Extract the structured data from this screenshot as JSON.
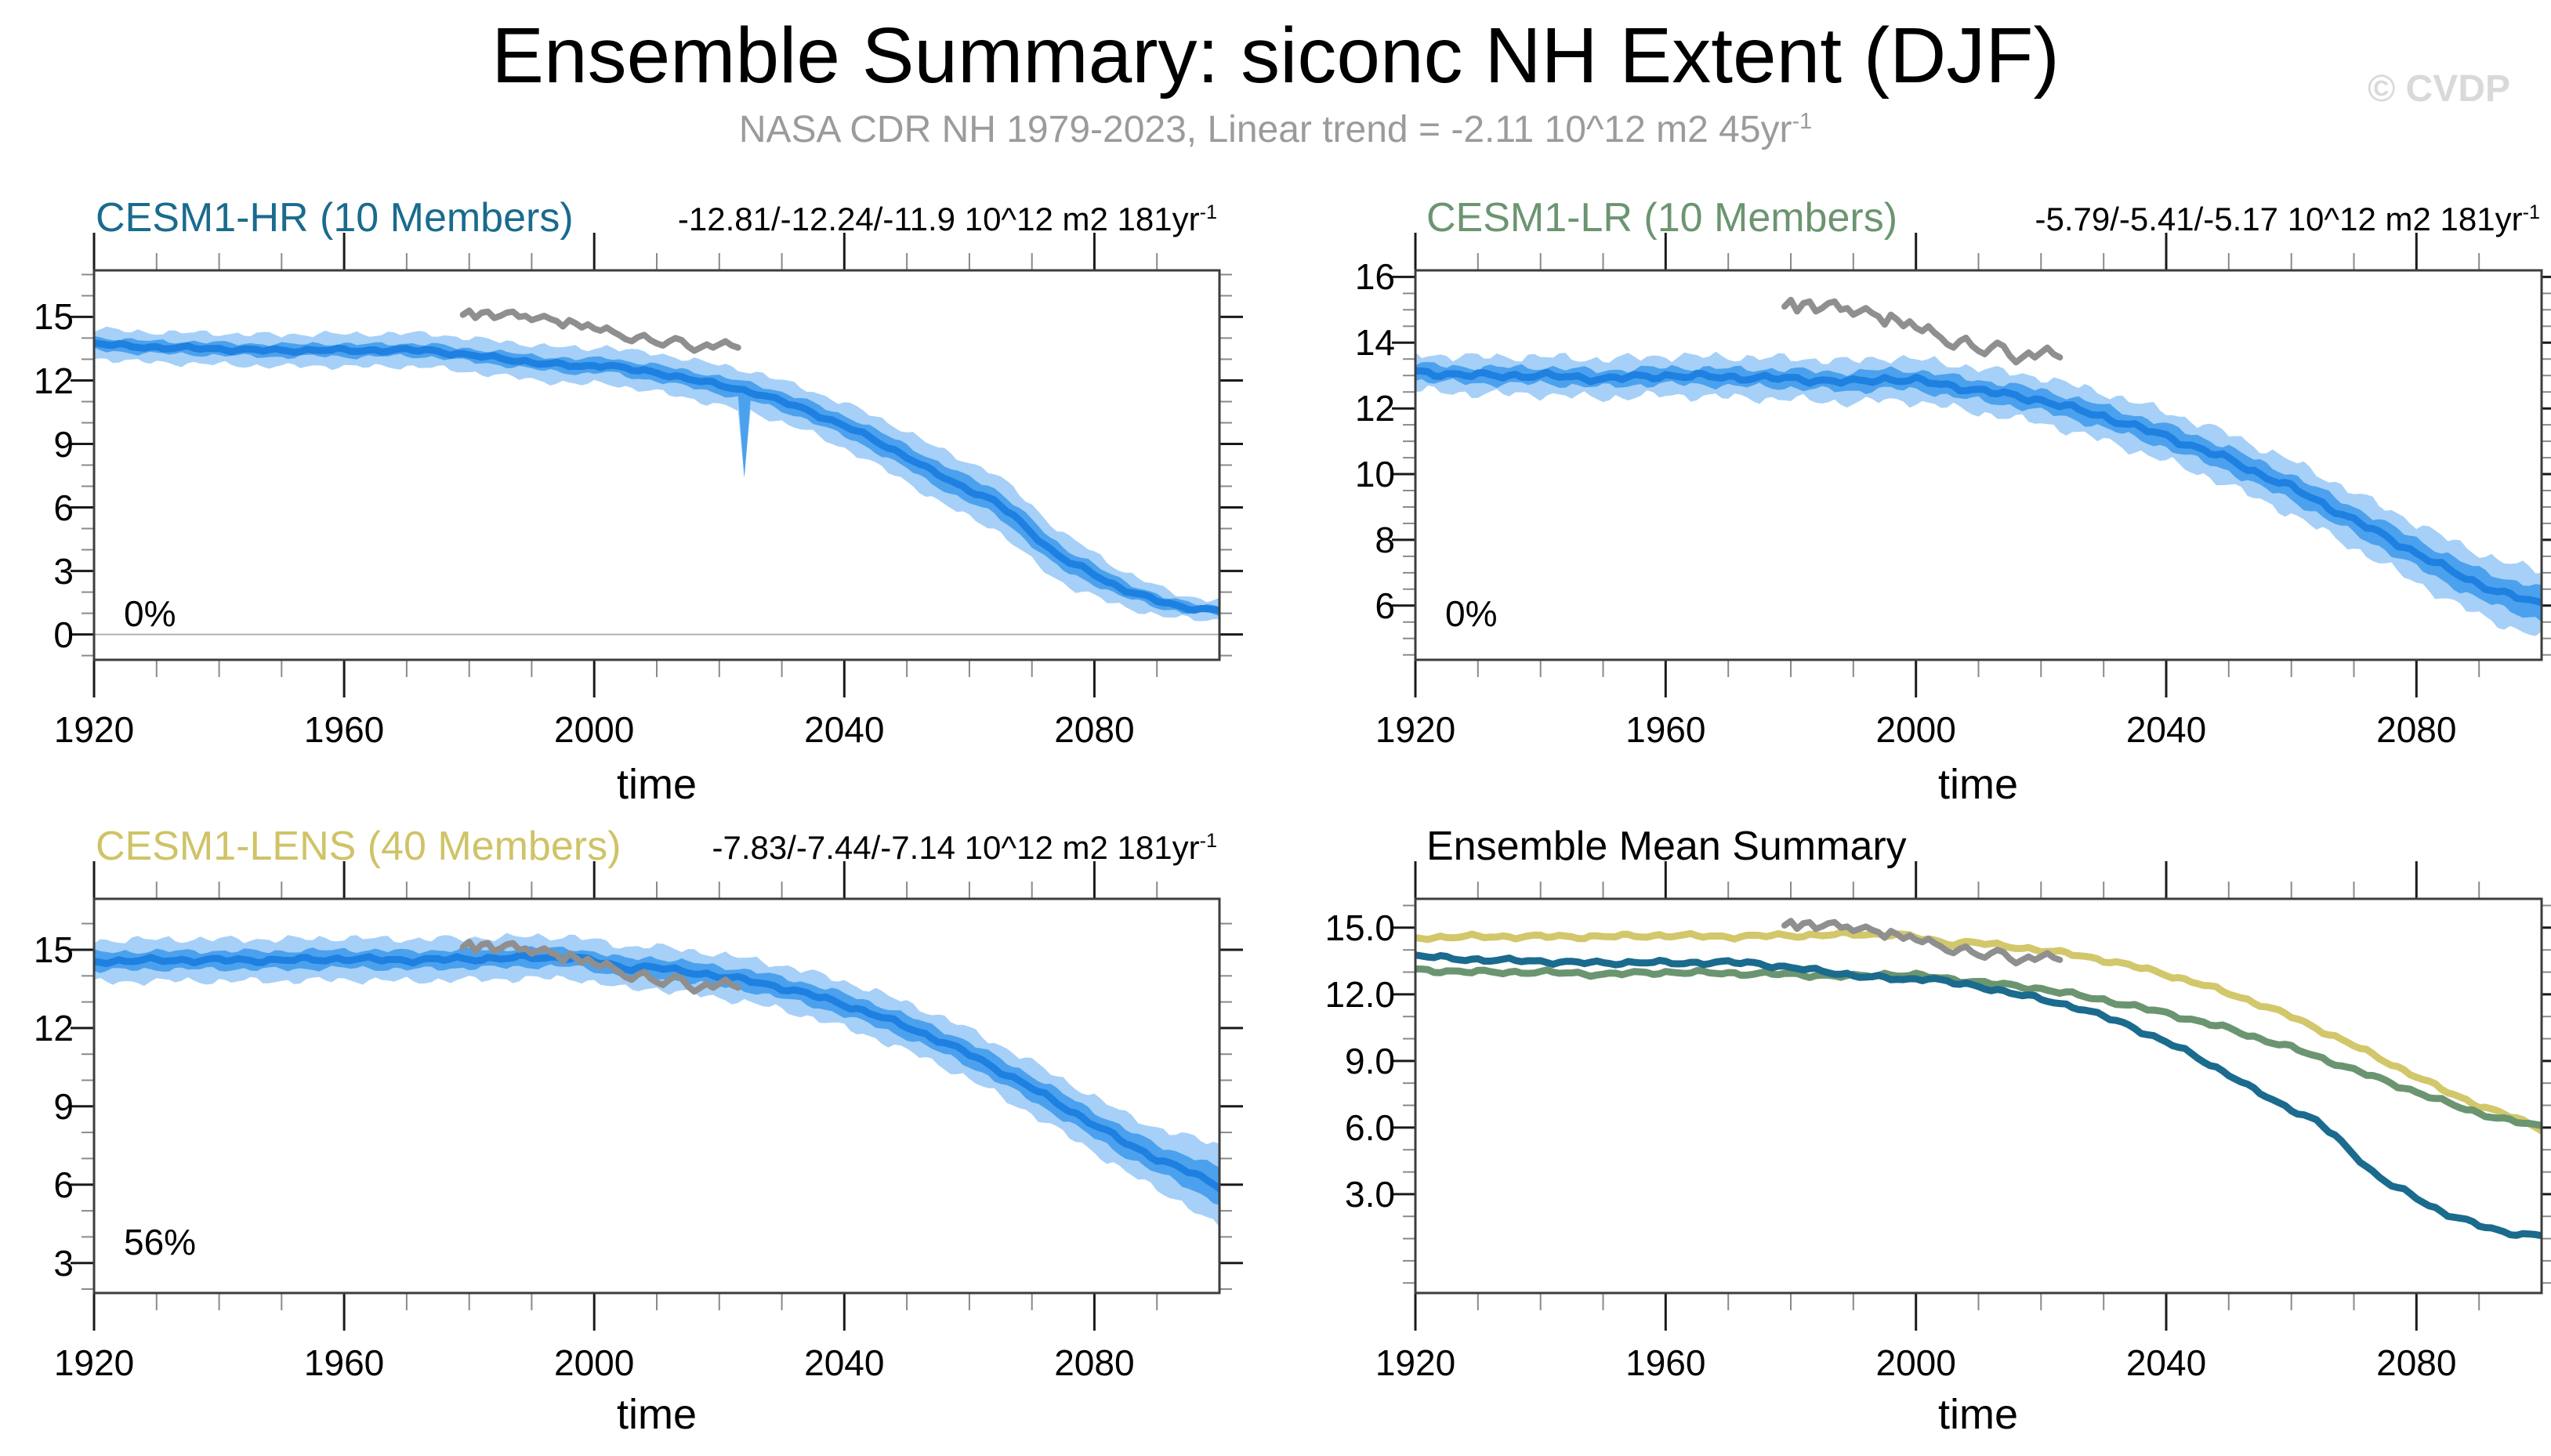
{
  "header": {
    "title": "Ensemble Summary: siconc NH Extent (DJF)",
    "subtitle_main": "NASA CDR NH 1979-2023, Linear trend = -2.11 10^12 m2 45yr",
    "subtitle_sup": "-1",
    "watermark": "© CVDP"
  },
  "chart_data": {
    "type": "line",
    "xlabel_all": "time",
    "panels": [
      {
        "id": "tl",
        "title": "CESM1-HR (10 Members)",
        "title_color": "#1a6b8d",
        "trend": "-12.81/-12.24/-11.9 10^12 m2 181yr",
        "trend_sup": "-1",
        "corner_label": "0%",
        "xlabel": "time",
        "x_range": [
          1920,
          2100
        ],
        "x_major_ticks": [
          1920,
          1960,
          2000,
          2040,
          2080
        ],
        "x_minor_step": 10,
        "y_range": [
          -1.2,
          17.2
        ],
        "y_major_ticks": [
          0,
          3,
          6,
          9,
          12,
          15
        ],
        "y_minor_step": 1,
        "y_tick_format": "int",
        "zero_line": 0,
        "band_of": "hr",
        "lines": [
          {
            "ref": "hr",
            "use": "mean"
          },
          {
            "ref": "obs",
            "use": "obs"
          }
        ]
      },
      {
        "id": "tr",
        "title": "CESM1-LR (10 Members)",
        "title_color": "#6b9570",
        "trend": "-5.79/-5.41/-5.17 10^12 m2 181yr",
        "trend_sup": "-1",
        "corner_label": "0%",
        "xlabel": "time",
        "x_range": [
          1920,
          2100
        ],
        "x_major_ticks": [
          1920,
          1960,
          2000,
          2040,
          2080
        ],
        "x_minor_step": 10,
        "y_range": [
          4.35,
          16.2
        ],
        "y_major_ticks": [
          6,
          8,
          10,
          12,
          14,
          16
        ],
        "y_minor_step": 0.5,
        "y_tick_format": "int",
        "zero_line": null,
        "band_of": "lr",
        "lines": [
          {
            "ref": "lr",
            "use": "mean"
          },
          {
            "ref": "obs",
            "use": "obs"
          }
        ]
      },
      {
        "id": "bl",
        "title": "CESM1-LENS (40 Members)",
        "title_color": "#cfc367",
        "trend": "-7.83/-7.44/-7.14 10^12 m2 181yr",
        "trend_sup": "-1",
        "corner_label": "56%",
        "xlabel": "time",
        "x_range": [
          1920,
          2100
        ],
        "x_major_ticks": [
          1920,
          1960,
          2000,
          2040,
          2080
        ],
        "x_minor_step": 10,
        "y_range": [
          1.85,
          16.95
        ],
        "y_major_ticks": [
          3,
          6,
          9,
          12,
          15
        ],
        "y_minor_step": 1,
        "y_tick_format": "int",
        "zero_line": null,
        "band_of": "lens",
        "lines": [
          {
            "ref": "lens",
            "use": "mean"
          },
          {
            "ref": "obs",
            "use": "obs"
          }
        ]
      },
      {
        "id": "br",
        "title": "Ensemble Mean Summary",
        "title_color": "#000000",
        "trend": null,
        "trend_sup": null,
        "corner_label": null,
        "xlabel": "time",
        "x_range": [
          1920,
          2100
        ],
        "x_major_ticks": [
          1920,
          1960,
          2000,
          2040,
          2080
        ],
        "x_minor_step": 10,
        "y_range": [
          -1.45,
          16.3
        ],
        "y_major_ticks": [
          3,
          6,
          9,
          12,
          15
        ],
        "y_minor_step": 1,
        "y_tick_format": "fixed1",
        "zero_line": null,
        "band_of": null,
        "lines": [
          {
            "ref": "lens",
            "use": "summary"
          },
          {
            "ref": "lr",
            "use": "summary"
          },
          {
            "ref": "hr",
            "use": "summary"
          },
          {
            "ref": "obs",
            "use": "obs"
          }
        ]
      }
    ],
    "series": {
      "obs": {
        "name": "NASA CDR NH observations 1979-2023",
        "color": "#8f8f8f",
        "points": [
          [
            1979,
            15.1
          ],
          [
            1980,
            15.3
          ],
          [
            1981,
            14.95
          ],
          [
            1982,
            15.2
          ],
          [
            1983,
            15.25
          ],
          [
            1984,
            14.95
          ],
          [
            1985,
            15.05
          ],
          [
            1986,
            15.2
          ],
          [
            1987,
            15.25
          ],
          [
            1988,
            15.0
          ],
          [
            1989,
            15.05
          ],
          [
            1990,
            14.85
          ],
          [
            1991,
            14.95
          ],
          [
            1992,
            15.05
          ],
          [
            1993,
            14.9
          ],
          [
            1994,
            14.8
          ],
          [
            1995,
            14.55
          ],
          [
            1996,
            14.85
          ],
          [
            1997,
            14.7
          ],
          [
            1998,
            14.5
          ],
          [
            1999,
            14.65
          ],
          [
            2000,
            14.45
          ],
          [
            2001,
            14.35
          ],
          [
            2002,
            14.5
          ],
          [
            2003,
            14.3
          ],
          [
            2004,
            14.15
          ],
          [
            2005,
            13.95
          ],
          [
            2006,
            13.85
          ],
          [
            2007,
            14.05
          ],
          [
            2008,
            14.15
          ],
          [
            2009,
            13.9
          ],
          [
            2010,
            13.75
          ],
          [
            2011,
            13.65
          ],
          [
            2012,
            13.85
          ],
          [
            2013,
            14.0
          ],
          [
            2014,
            13.9
          ],
          [
            2015,
            13.6
          ],
          [
            2016,
            13.4
          ],
          [
            2017,
            13.55
          ],
          [
            2018,
            13.7
          ],
          [
            2019,
            13.55
          ],
          [
            2020,
            13.7
          ],
          [
            2021,
            13.85
          ],
          [
            2022,
            13.65
          ],
          [
            2023,
            13.55
          ]
        ]
      },
      "hr": {
        "name": "CESM1-HR ensemble mean",
        "color_mean": "#1e80e0",
        "color_inner": "#4ba1ed",
        "color_outer": "#a6d0f7",
        "summary_color": "#1a6b8d",
        "mean": [
          [
            1920,
            13.75
          ],
          [
            1926,
            13.6
          ],
          [
            1932,
            13.55
          ],
          [
            1938,
            13.5
          ],
          [
            1944,
            13.45
          ],
          [
            1950,
            13.4
          ],
          [
            1956,
            13.45
          ],
          [
            1962,
            13.4
          ],
          [
            1968,
            13.45
          ],
          [
            1974,
            13.4
          ],
          [
            1980,
            13.2
          ],
          [
            1986,
            13.0
          ],
          [
            1992,
            12.8
          ],
          [
            1998,
            12.65
          ],
          [
            2002,
            12.75
          ],
          [
            2006,
            12.5
          ],
          [
            2010,
            12.35
          ],
          [
            2014,
            12.15
          ],
          [
            2018,
            11.9
          ],
          [
            2022,
            11.65
          ],
          [
            2026,
            11.4
          ],
          [
            2030,
            11.0
          ],
          [
            2034,
            10.6
          ],
          [
            2038,
            10.1
          ],
          [
            2042,
            9.6
          ],
          [
            2046,
            9.0
          ],
          [
            2050,
            8.4
          ],
          [
            2054,
            7.7
          ],
          [
            2058,
            7.1
          ],
          [
            2061,
            6.7
          ],
          [
            2064,
            6.3
          ],
          [
            2067,
            5.6
          ],
          [
            2070,
            4.8
          ],
          [
            2073,
            4.0
          ],
          [
            2076,
            3.4
          ],
          [
            2079,
            3.0
          ],
          [
            2082,
            2.5
          ],
          [
            2085,
            2.1
          ],
          [
            2088,
            1.8
          ],
          [
            2091,
            1.5
          ],
          [
            2094,
            1.3
          ],
          [
            2097,
            1.2
          ],
          [
            2100,
            1.15
          ]
        ],
        "inner_hw": [
          [
            1920,
            0.3
          ],
          [
            1950,
            0.3
          ],
          [
            1980,
            0.3
          ],
          [
            2000,
            0.35
          ],
          [
            2020,
            0.4
          ],
          [
            2035,
            0.45
          ],
          [
            2050,
            0.55
          ],
          [
            2060,
            0.6
          ],
          [
            2070,
            0.6
          ],
          [
            2078,
            0.5
          ],
          [
            2086,
            0.35
          ],
          [
            2094,
            0.25
          ],
          [
            2100,
            0.2
          ]
        ],
        "outer_hw": [
          [
            1920,
            0.7
          ],
          [
            1950,
            0.75
          ],
          [
            1980,
            0.8
          ],
          [
            2000,
            0.85
          ],
          [
            2020,
            0.95
          ],
          [
            2035,
            1.0
          ],
          [
            2050,
            1.2
          ],
          [
            2060,
            1.3
          ],
          [
            2070,
            1.3
          ],
          [
            2078,
            1.1
          ],
          [
            2086,
            0.8
          ],
          [
            2094,
            0.55
          ],
          [
            2100,
            0.45
          ]
        ],
        "spikes": [
          [
            2024,
            7.4
          ]
        ]
      },
      "lr": {
        "name": "CESM1-LR ensemble mean",
        "color_mean": "#1e80e0",
        "color_inner": "#4ba1ed",
        "color_outer": "#a6d0f7",
        "summary_color": "#6b9570",
        "mean": [
          [
            1920,
            13.1
          ],
          [
            1930,
            13.0
          ],
          [
            1940,
            13.0
          ],
          [
            1950,
            12.9
          ],
          [
            1960,
            13.0
          ],
          [
            1970,
            12.95
          ],
          [
            1980,
            12.9
          ],
          [
            1990,
            12.8
          ],
          [
            1995,
            12.9
          ],
          [
            2000,
            12.85
          ],
          [
            2005,
            12.7
          ],
          [
            2010,
            12.55
          ],
          [
            2015,
            12.4
          ],
          [
            2020,
            12.25
          ],
          [
            2025,
            12.0
          ],
          [
            2030,
            11.75
          ],
          [
            2035,
            11.45
          ],
          [
            2040,
            11.15
          ],
          [
            2045,
            10.8
          ],
          [
            2050,
            10.45
          ],
          [
            2055,
            10.0
          ],
          [
            2060,
            9.6
          ],
          [
            2065,
            9.1
          ],
          [
            2070,
            8.6
          ],
          [
            2075,
            8.1
          ],
          [
            2080,
            7.6
          ],
          [
            2085,
            7.1
          ],
          [
            2090,
            6.65
          ],
          [
            2095,
            6.3
          ],
          [
            2100,
            6.05
          ]
        ],
        "inner_hw": [
          [
            1920,
            0.25
          ],
          [
            1960,
            0.25
          ],
          [
            2000,
            0.3
          ],
          [
            2040,
            0.35
          ],
          [
            2070,
            0.4
          ],
          [
            2090,
            0.45
          ],
          [
            2100,
            0.5
          ]
        ],
        "outer_hw": [
          [
            1920,
            0.55
          ],
          [
            1960,
            0.6
          ],
          [
            2000,
            0.65
          ],
          [
            2040,
            0.75
          ],
          [
            2070,
            0.85
          ],
          [
            2090,
            0.95
          ],
          [
            2100,
            1.0
          ]
        ],
        "spikes": []
      },
      "lens": {
        "name": "CESM1-LENS ensemble mean",
        "color_mean": "#1e80e0",
        "color_inner": "#4ba1ed",
        "color_outer": "#a6d0f7",
        "summary_color": "#d2c76a",
        "mean": [
          [
            1920,
            14.55
          ],
          [
            1930,
            14.6
          ],
          [
            1940,
            14.6
          ],
          [
            1950,
            14.6
          ],
          [
            1960,
            14.65
          ],
          [
            1970,
            14.6
          ],
          [
            1980,
            14.65
          ],
          [
            1990,
            14.7
          ],
          [
            1997,
            14.7
          ],
          [
            2001,
            14.5
          ],
          [
            2005,
            14.3
          ],
          [
            2009,
            14.35
          ],
          [
            2013,
            14.2
          ],
          [
            2017,
            14.1
          ],
          [
            2021,
            13.95
          ],
          [
            2025,
            13.8
          ],
          [
            2030,
            13.55
          ],
          [
            2035,
            13.25
          ],
          [
            2040,
            12.9
          ],
          [
            2045,
            12.5
          ],
          [
            2050,
            12.05
          ],
          [
            2055,
            11.55
          ],
          [
            2060,
            11.0
          ],
          [
            2065,
            10.35
          ],
          [
            2070,
            9.7
          ],
          [
            2075,
            9.0
          ],
          [
            2080,
            8.3
          ],
          [
            2085,
            7.6
          ],
          [
            2090,
            7.0
          ],
          [
            2095,
            6.5
          ],
          [
            2100,
            5.95
          ]
        ],
        "inner_hw": [
          [
            1920,
            0.35
          ],
          [
            1960,
            0.35
          ],
          [
            2000,
            0.35
          ],
          [
            2030,
            0.4
          ],
          [
            2060,
            0.45
          ],
          [
            2080,
            0.5
          ],
          [
            2092,
            0.55
          ],
          [
            2100,
            0.7
          ]
        ],
        "outer_hw": [
          [
            1920,
            0.8
          ],
          [
            1960,
            0.8
          ],
          [
            2000,
            0.8
          ],
          [
            2030,
            0.85
          ],
          [
            2060,
            0.95
          ],
          [
            2080,
            1.05
          ],
          [
            2092,
            1.2
          ],
          [
            2100,
            1.6
          ]
        ],
        "spikes": []
      }
    }
  }
}
